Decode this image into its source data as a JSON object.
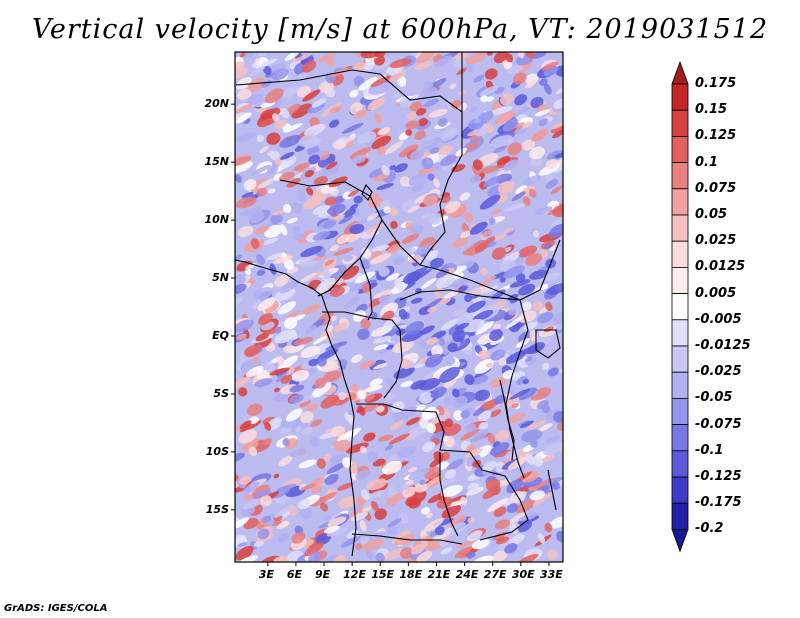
{
  "title": "Vertical velocity [m/s] at 600hPa, VT: 2019031512",
  "credit": "GrADS: IGES/COLA",
  "map": {
    "lat_range": [
      -19.5,
      24.5
    ],
    "lon_range": [
      -0.5,
      34.5
    ],
    "lat_ticks": [
      {
        "value": 20,
        "label": "20N"
      },
      {
        "value": 15,
        "label": "15N"
      },
      {
        "value": 10,
        "label": "10N"
      },
      {
        "value": 5,
        "label": "5N"
      },
      {
        "value": 0,
        "label": "EQ"
      },
      {
        "value": -5,
        "label": "5S"
      },
      {
        "value": -10,
        "label": "10S"
      },
      {
        "value": -15,
        "label": "15S"
      }
    ],
    "lon_ticks": [
      {
        "value": 3,
        "label": "3E"
      },
      {
        "value": 6,
        "label": "6E"
      },
      {
        "value": 9,
        "label": "9E"
      },
      {
        "value": 12,
        "label": "12E"
      },
      {
        "value": 15,
        "label": "15E"
      },
      {
        "value": 18,
        "label": "18E"
      },
      {
        "value": 21,
        "label": "21E"
      },
      {
        "value": 24,
        "label": "24E"
      },
      {
        "value": 27,
        "label": "27E"
      },
      {
        "value": 30,
        "label": "30E"
      },
      {
        "value": 33,
        "label": "33E"
      }
    ]
  },
  "colorbar": {
    "levels": [
      {
        "label": "0.175",
        "color": "#a51e1e"
      },
      {
        "label": "0.15",
        "color": "#c52626"
      },
      {
        "label": "0.125",
        "color": "#d84040"
      },
      {
        "label": "0.1",
        "color": "#e26060"
      },
      {
        "label": "0.075",
        "color": "#e88080"
      },
      {
        "label": "0.05",
        "color": "#f0a0a0"
      },
      {
        "label": "0.025",
        "color": "#f6c0c0"
      },
      {
        "label": "0.0125",
        "color": "#fadcdc"
      },
      {
        "label": "0.005",
        "color": "#fdeeee"
      },
      {
        "label": "-0.005",
        "color": "#ffffff"
      },
      {
        "label": "-0.0125",
        "color": "#e0e0fa"
      },
      {
        "label": "-0.025",
        "color": "#c8c8f6"
      },
      {
        "label": "-0.05",
        "color": "#b0b0f2"
      },
      {
        "label": "-0.075",
        "color": "#9494ec"
      },
      {
        "label": "-0.1",
        "color": "#7878e4"
      },
      {
        "label": "-0.125",
        "color": "#5a5ada"
      },
      {
        "label": "-0.175",
        "color": "#3c3cc8"
      },
      {
        "label": "-0.2",
        "color": "#2020a8"
      }
    ],
    "over_color": "#a51e1e",
    "under_color": "#1a1a96"
  }
}
